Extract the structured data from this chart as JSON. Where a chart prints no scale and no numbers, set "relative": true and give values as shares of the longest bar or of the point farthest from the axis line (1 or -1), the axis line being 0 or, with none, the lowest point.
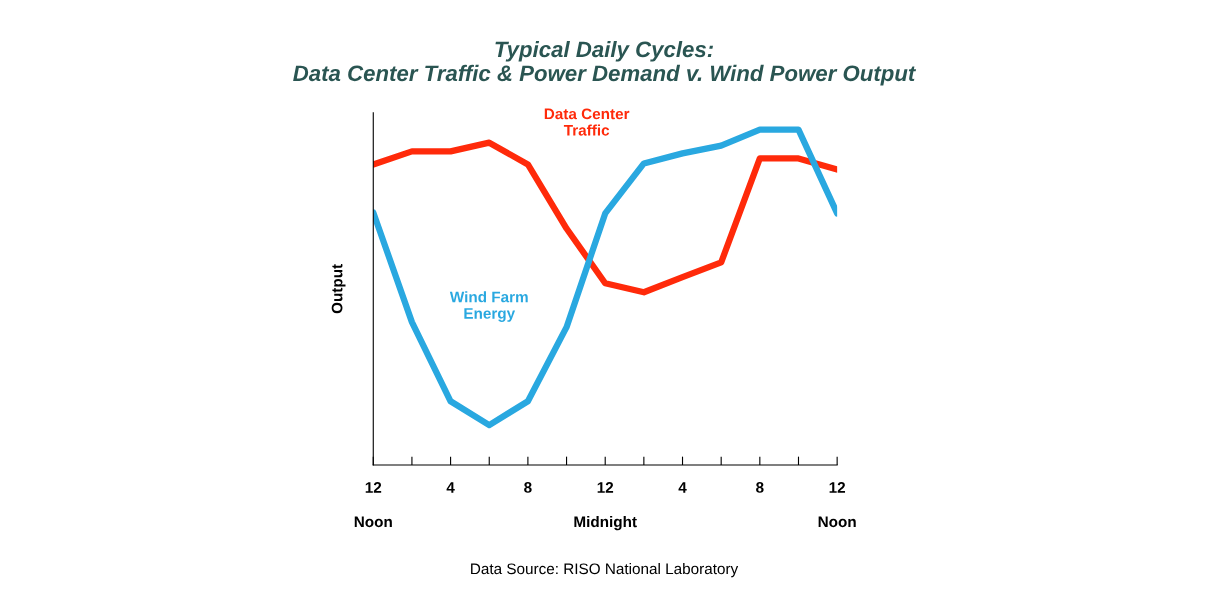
{
  "chart_data": {
    "type": "line",
    "title": "Typical Daily Cycles:\nData Center Traffic & Power Demand v. Wind Power Output",
    "ylabel": "Output",
    "relative": true,
    "categories": [
      "12",
      null,
      "4",
      null,
      "8",
      null,
      "12",
      null,
      "4",
      null,
      "8",
      null,
      "12"
    ],
    "series": [
      {
        "name": "Data Center Traffic",
        "color": "#ff2a0a",
        "values": [
          0.896,
          0.935,
          0.935,
          0.961,
          0.896,
          0.705,
          0.542,
          0.515,
          0.56,
          0.604,
          0.914,
          0.914,
          0.881
        ]
      },
      {
        "name": "Wind Farm Energy",
        "color": "#29a8e0",
        "values": [
          0.753,
          0.426,
          0.19,
          0.119,
          0.19,
          0.411,
          0.75,
          0.899,
          0.929,
          0.952,
          1,
          1,
          0.75
        ]
      }
    ],
    "grid": false,
    "legend": false,
    "marker": "none",
    "line_style": "solid",
    "annotations": [
      "Noon",
      "Midnight",
      "Noon",
      "Data Source: RISO National Laboratory"
    ]
  }
}
